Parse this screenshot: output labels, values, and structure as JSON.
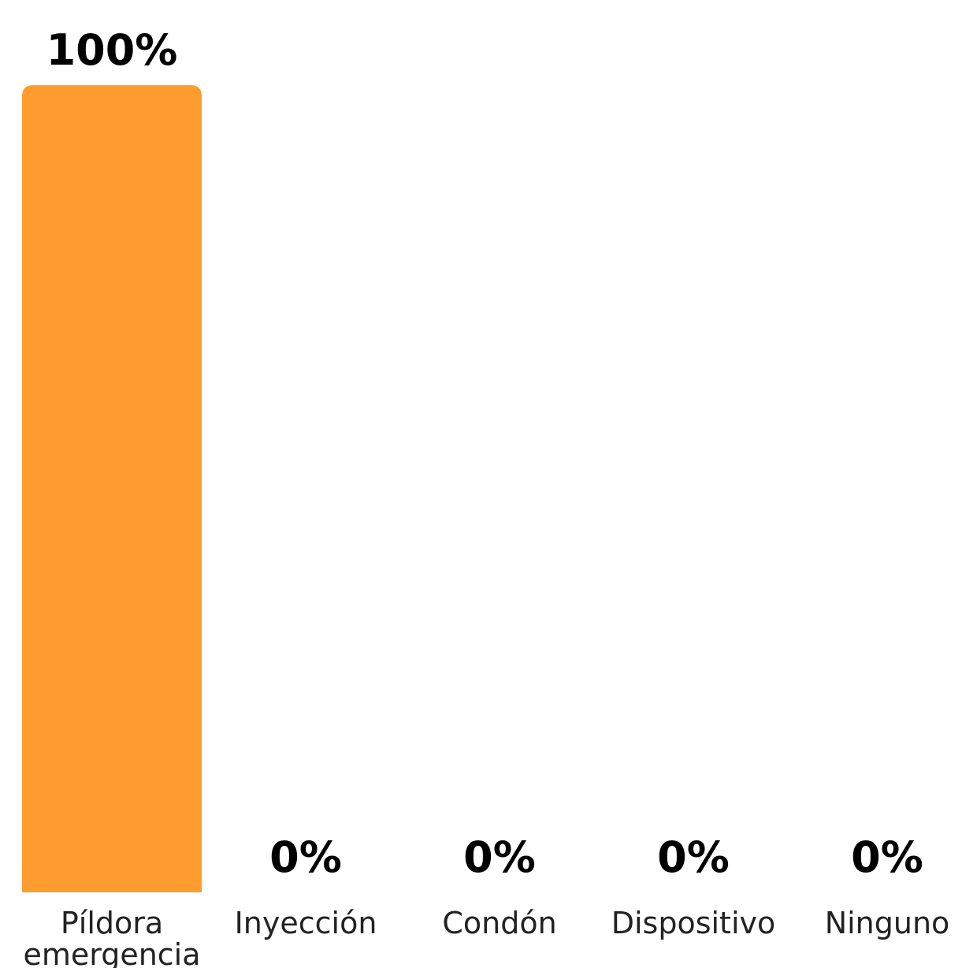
{
  "chart_data": {
    "type": "bar",
    "categories": [
      [
        "Píldora",
        "emergencia"
      ],
      [
        "Inyección"
      ],
      [
        "Condón"
      ],
      [
        "Dispositivo"
      ],
      [
        "Ninguno"
      ]
    ],
    "values": [
      100,
      0,
      0,
      0,
      0
    ],
    "value_labels": [
      "100%",
      "0%",
      "0%",
      "0%",
      "0%"
    ],
    "ylim": [
      0,
      100
    ],
    "bar_color": "#FF9C2F",
    "grid": false,
    "legend": "none",
    "title": "",
    "xlabel": "",
    "ylabel": ""
  }
}
